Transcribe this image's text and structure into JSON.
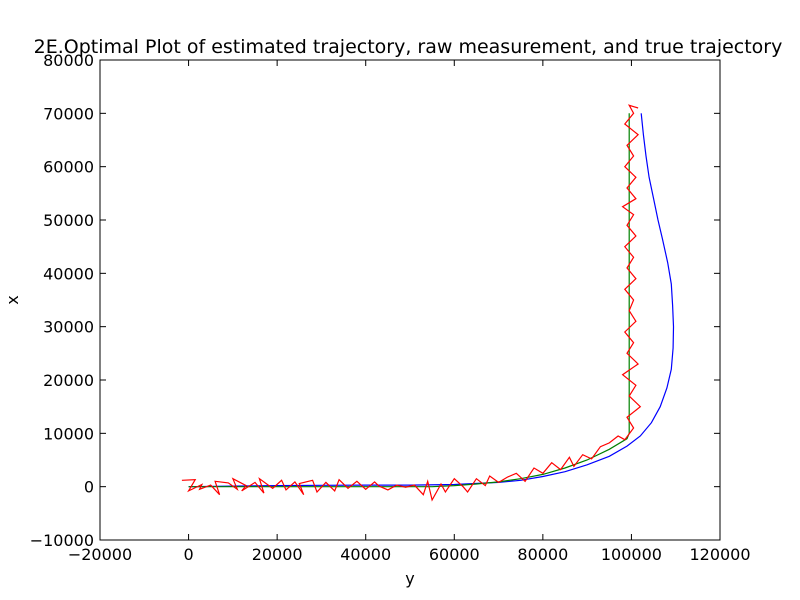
{
  "chart_data": {
    "type": "line",
    "title": "2E.Optimal Plot of estimated trajectory, raw measurement, and true trajectory",
    "xlabel": "y",
    "ylabel": "x",
    "xlim": [
      -20000,
      120000
    ],
    "ylim": [
      -10000,
      80000
    ],
    "x_ticks": [
      -20000,
      0,
      20000,
      40000,
      60000,
      80000,
      100000,
      120000
    ],
    "y_ticks": [
      -10000,
      0,
      10000,
      20000,
      30000,
      40000,
      50000,
      60000,
      70000,
      80000
    ],
    "x_tick_labels": [
      "−20000",
      "0",
      "20000",
      "40000",
      "60000",
      "80000",
      "100000",
      "120000"
    ],
    "y_tick_labels": [
      "−10000",
      "0",
      "10000",
      "20000",
      "30000",
      "40000",
      "50000",
      "60000",
      "70000",
      "80000"
    ],
    "grid": false,
    "legend": "none",
    "series": [
      {
        "color": "#0000ff",
        "points": [
          [
            0,
            0
          ],
          [
            10000,
            100
          ],
          [
            20000,
            200
          ],
          [
            30000,
            250
          ],
          [
            40000,
            300
          ],
          [
            50000,
            300
          ],
          [
            60000,
            400
          ],
          [
            70000,
            800
          ],
          [
            75000,
            1200
          ],
          [
            80000,
            1900
          ],
          [
            85000,
            2800
          ],
          [
            90000,
            4100
          ],
          [
            95000,
            5700
          ],
          [
            99000,
            7600
          ],
          [
            102000,
            9500
          ],
          [
            104500,
            12000
          ],
          [
            106500,
            15000
          ],
          [
            108000,
            18500
          ],
          [
            109000,
            22000
          ],
          [
            109400,
            26000
          ],
          [
            109500,
            30000
          ],
          [
            109300,
            34000
          ],
          [
            109000,
            38000
          ],
          [
            108200,
            42000
          ],
          [
            107000,
            46500
          ],
          [
            106000,
            50000
          ],
          [
            105000,
            54000
          ],
          [
            104000,
            58000
          ],
          [
            103300,
            62000
          ],
          [
            102700,
            66000
          ],
          [
            102200,
            70000
          ]
        ]
      },
      {
        "color": "#008000",
        "points": [
          [
            0,
            0
          ],
          [
            10000,
            0
          ],
          [
            20000,
            0
          ],
          [
            30000,
            0
          ],
          [
            40000,
            0
          ],
          [
            50000,
            0
          ],
          [
            55000,
            0
          ],
          [
            60000,
            200
          ],
          [
            65000,
            500
          ],
          [
            70000,
            900
          ],
          [
            75000,
            1500
          ],
          [
            80000,
            2300
          ],
          [
            85000,
            3500
          ],
          [
            90000,
            5000
          ],
          [
            95000,
            7000
          ],
          [
            99000,
            9000
          ],
          [
            99500,
            10000
          ],
          [
            99500,
            20000
          ],
          [
            99500,
            30000
          ],
          [
            99500,
            40000
          ],
          [
            99500,
            50000
          ],
          [
            99500,
            60000
          ],
          [
            99500,
            70000
          ]
        ]
      },
      {
        "color": "#ff0000",
        "points": [
          [
            -1500,
            1200
          ],
          [
            1500,
            1300
          ],
          [
            0,
            -800
          ],
          [
            3000,
            400
          ],
          [
            2500,
            -500
          ],
          [
            5000,
            300
          ],
          [
            7000,
            -1500
          ],
          [
            6000,
            1000
          ],
          [
            9000,
            700
          ],
          [
            11000,
            -500
          ],
          [
            10000,
            1500
          ],
          [
            13000,
            200
          ],
          [
            12000,
            -800
          ],
          [
            15000,
            800
          ],
          [
            17000,
            -1200
          ],
          [
            16000,
            1500
          ],
          [
            19000,
            -300
          ],
          [
            21000,
            1200
          ],
          [
            22000,
            -600
          ],
          [
            24000,
            900
          ],
          [
            26000,
            -1500
          ],
          [
            25000,
            600
          ],
          [
            28000,
            1200
          ],
          [
            29000,
            -1000
          ],
          [
            31000,
            800
          ],
          [
            33000,
            -800
          ],
          [
            34000,
            1300
          ],
          [
            36000,
            -300
          ],
          [
            38000,
            1000
          ],
          [
            40000,
            -500
          ],
          [
            42000,
            900
          ],
          [
            43000,
            100
          ],
          [
            45000,
            -600
          ],
          [
            47000,
            300
          ],
          [
            49000,
            -100
          ],
          [
            51000,
            300
          ],
          [
            53000,
            -1500
          ],
          [
            54000,
            1000
          ],
          [
            55000,
            -2500
          ],
          [
            57000,
            500
          ],
          [
            58000,
            -1000
          ],
          [
            60000,
            1500
          ],
          [
            62000,
            0
          ],
          [
            63000,
            -1000
          ],
          [
            65000,
            1500
          ],
          [
            67000,
            200
          ],
          [
            68000,
            2000
          ],
          [
            70000,
            800
          ],
          [
            72000,
            1800
          ],
          [
            74000,
            2500
          ],
          [
            76000,
            1000
          ],
          [
            78000,
            3500
          ],
          [
            80000,
            2500
          ],
          [
            82000,
            4500
          ],
          [
            84000,
            3200
          ],
          [
            86000,
            5500
          ],
          [
            87000,
            3800
          ],
          [
            89000,
            6000
          ],
          [
            91000,
            5200
          ],
          [
            93000,
            7500
          ],
          [
            95000,
            8200
          ],
          [
            97000,
            9500
          ],
          [
            98500,
            8800
          ],
          [
            100500,
            11000
          ],
          [
            99000,
            13000
          ],
          [
            102000,
            15000
          ],
          [
            99500,
            17000
          ],
          [
            101000,
            19000
          ],
          [
            98000,
            21000
          ],
          [
            101500,
            23000
          ],
          [
            99000,
            25000
          ],
          [
            100500,
            27000
          ],
          [
            98500,
            29000
          ],
          [
            101000,
            31000
          ],
          [
            99500,
            33000
          ],
          [
            100500,
            35000
          ],
          [
            98500,
            37000
          ],
          [
            101000,
            39000
          ],
          [
            99000,
            41000
          ],
          [
            100500,
            43000
          ],
          [
            98500,
            45000
          ],
          [
            101000,
            47000
          ],
          [
            99000,
            49000
          ],
          [
            100500,
            51000
          ],
          [
            98000,
            52500
          ],
          [
            101000,
            54000
          ],
          [
            99000,
            56000
          ],
          [
            101000,
            58000
          ],
          [
            98500,
            60000
          ],
          [
            100500,
            62000
          ],
          [
            99000,
            64000
          ],
          [
            101500,
            66000
          ],
          [
            98500,
            68000
          ],
          [
            100500,
            70000
          ],
          [
            99500,
            71500
          ],
          [
            101500,
            71000
          ]
        ]
      }
    ]
  }
}
